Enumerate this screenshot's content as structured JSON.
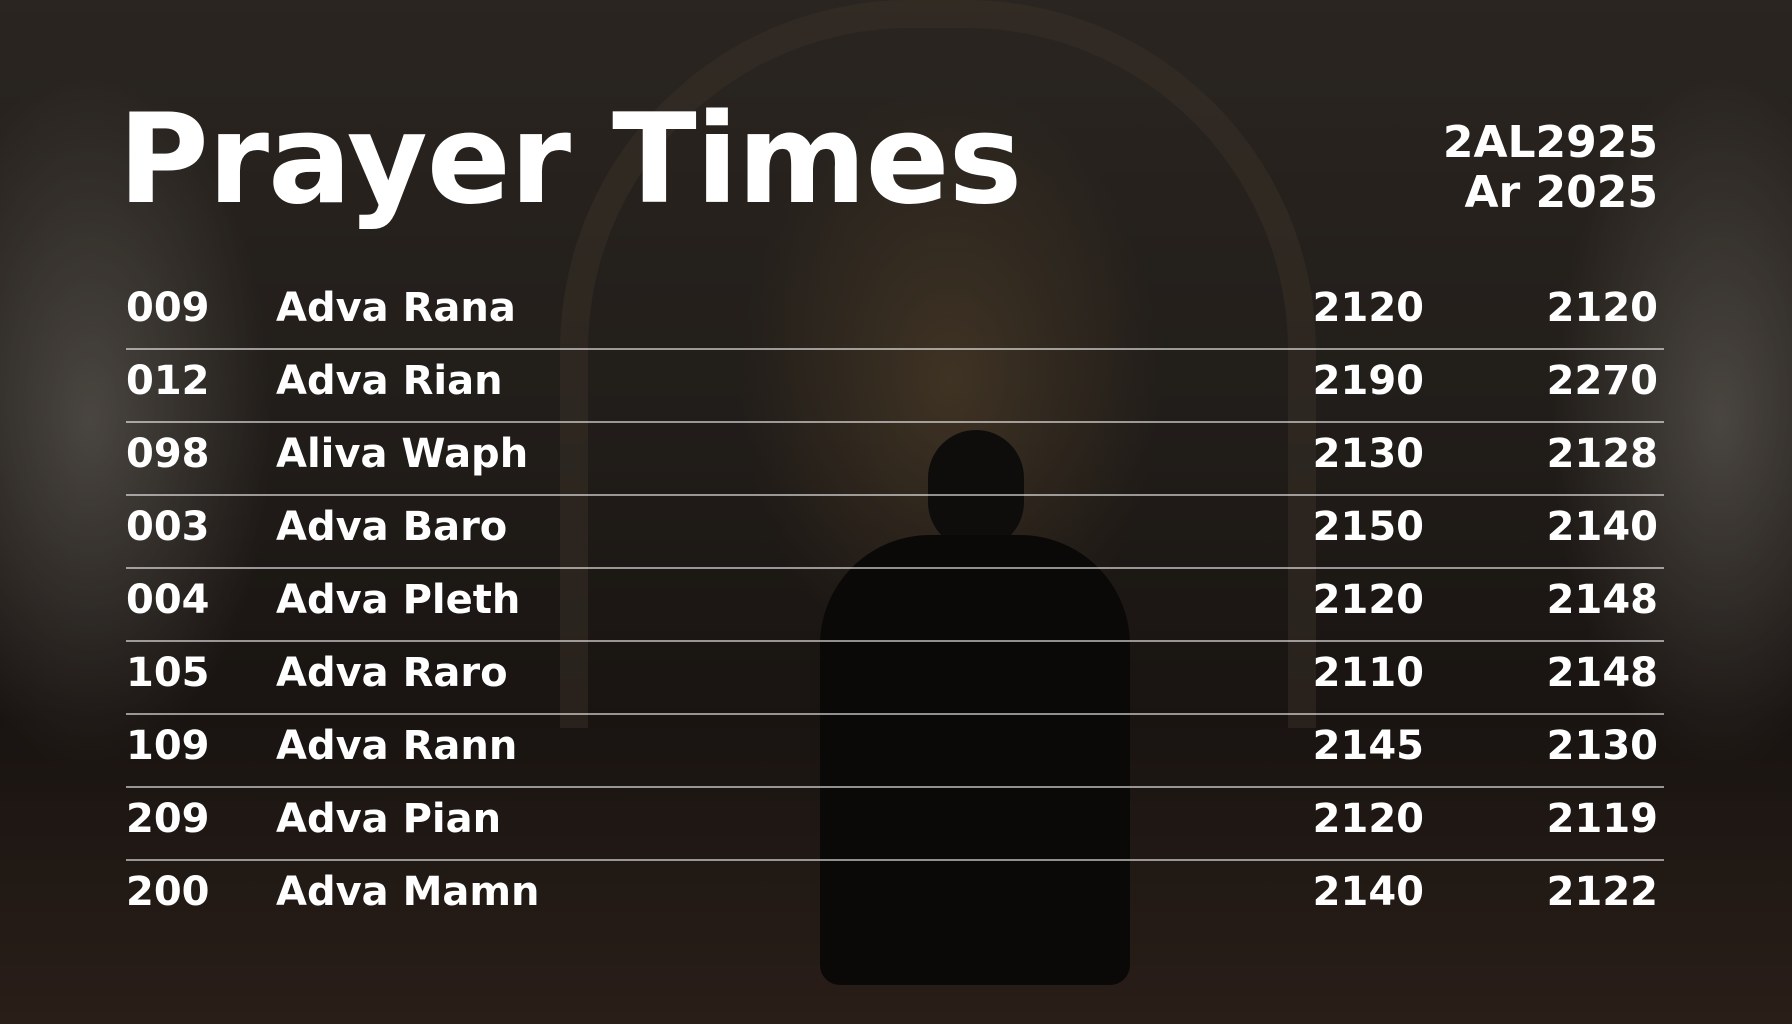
{
  "header": {
    "title": "Prayer Times",
    "date_line1": "2AL2925",
    "date_line2": "Ar 2025"
  },
  "rows": [
    {
      "num": "009",
      "name": "Adva Rana",
      "time1": "2120",
      "time2": "2120"
    },
    {
      "num": "012",
      "name": "Adva Rian",
      "time1": "2190",
      "time2": "2270"
    },
    {
      "num": "098",
      "name": "Aliva Waph",
      "time1": "2130",
      "time2": "2128"
    },
    {
      "num": "003",
      "name": "Adva Baro",
      "time1": "2150",
      "time2": "2140"
    },
    {
      "num": "004",
      "name": "Adva Pleth",
      "time1": "2120",
      "time2": "2148"
    },
    {
      "num": "105",
      "name": "Adva Raro",
      "time1": "2110",
      "time2": "2148"
    },
    {
      "num": "109",
      "name": "Adva Rann",
      "time1": "2145",
      "time2": "2130"
    },
    {
      "num": "209",
      "name": "Adva Pian",
      "time1": "2120",
      "time2": "2119"
    },
    {
      "num": "200",
      "name": "Adva Mamn",
      "time1": "2140",
      "time2": "2122"
    }
  ]
}
